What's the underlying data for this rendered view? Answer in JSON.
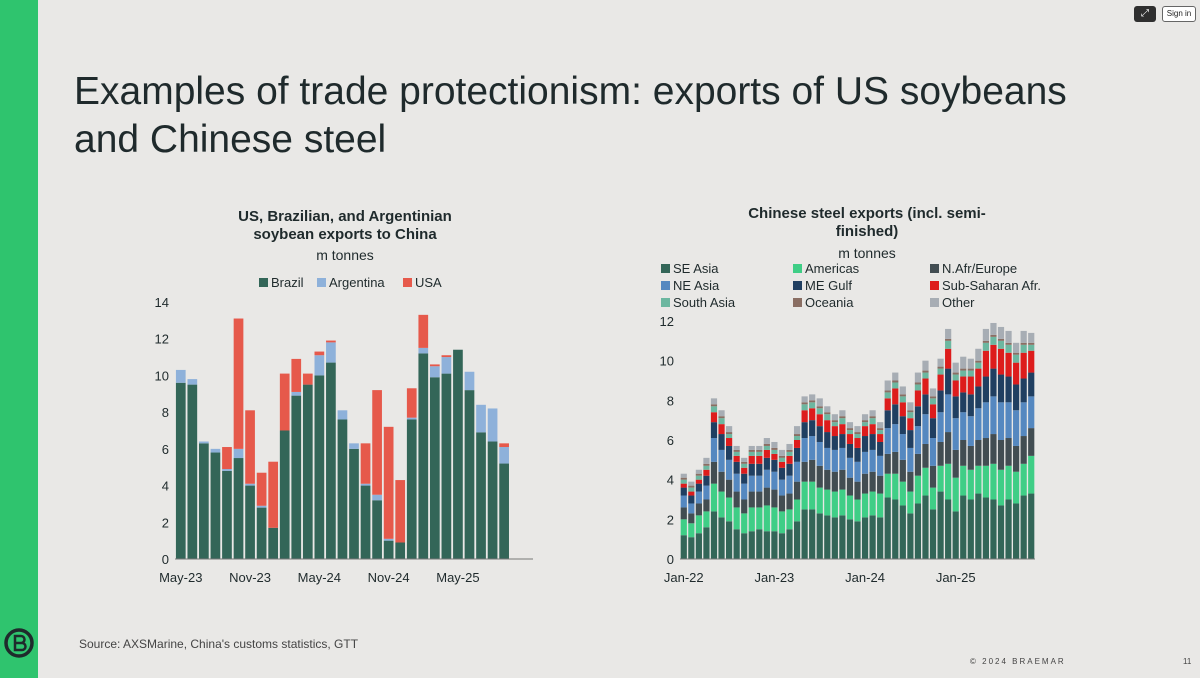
{
  "slide": {
    "title": "Examples of trade protectionism: exports of US soybeans and Chinese steel",
    "source": "Source: AXSMarine, China's customs statistics, GTT",
    "copyright": "© 2024 BRAEMAR",
    "page_number": "11",
    "sign_in_label": "Sign in",
    "expand_icon": "compress-icon",
    "accent_color": "#2fc46e"
  },
  "chart_data": [
    {
      "type": "bar",
      "stacked": true,
      "title": "US, Brazilian, and Argentinian soybean exports to China",
      "subtitle": "m tonnes",
      "xlabel": "",
      "ylabel": "",
      "ylim": [
        0,
        14
      ],
      "yticks": [
        0,
        2,
        4,
        6,
        8,
        10,
        12,
        14
      ],
      "xtick_labels": [
        {
          "index": 0,
          "label": "May-23"
        },
        {
          "index": 6,
          "label": "Nov-23"
        },
        {
          "index": 12,
          "label": "May-24"
        },
        {
          "index": 18,
          "label": "Nov-24"
        },
        {
          "index": 24,
          "label": "May-25"
        }
      ],
      "legend_position": "top",
      "categories": [
        "May-23",
        "Jun-23",
        "Jul-23",
        "Aug-23",
        "Sep-23",
        "Oct-23",
        "Nov-23",
        "Dec-23",
        "Jan-24",
        "Feb-24",
        "Mar-24",
        "Apr-24",
        "May-24",
        "Jun-24",
        "Jul-24",
        "Aug-24",
        "Sep-24",
        "Oct-24",
        "Nov-24",
        "Dec-24",
        "Jan-25",
        "Feb-25",
        "Mar-25",
        "Apr-25",
        "May-25",
        "Jun-25",
        "Jul-25",
        "Aug-25",
        "Sep-25",
        "Oct-25",
        "Nov-25"
      ],
      "series": [
        {
          "name": "Brazil",
          "color": "#336658",
          "values": [
            9.6,
            9.5,
            6.3,
            5.8,
            4.8,
            5.5,
            4.0,
            2.8,
            1.7,
            7.0,
            8.9,
            9.5,
            10.0,
            10.7,
            7.6,
            6.0,
            4.0,
            3.2,
            1.0,
            0.9,
            7.6,
            11.2,
            9.9,
            10.1,
            11.4,
            9.2,
            6.9,
            6.4,
            5.2,
            0,
            0
          ]
        },
        {
          "name": "Argentina",
          "color": "#8eb1da",
          "values": [
            0.7,
            0.3,
            0.1,
            0.2,
            0.1,
            0.5,
            0.1,
            0.1,
            0.0,
            0.0,
            0.2,
            0.0,
            1.1,
            1.1,
            0.5,
            0.3,
            0.1,
            0.3,
            0.1,
            0.0,
            0.1,
            0.3,
            0.6,
            0.9,
            0.0,
            1.0,
            1.5,
            1.8,
            0.9,
            0,
            0
          ]
        },
        {
          "name": "USA",
          "color": "#e6594b",
          "values": [
            0,
            0,
            0,
            0,
            1.2,
            7.1,
            4.0,
            1.8,
            3.6,
            3.1,
            1.8,
            0.6,
            0.2,
            0.1,
            0,
            0,
            2.2,
            5.7,
            6.1,
            3.4,
            1.6,
            1.8,
            0.1,
            0.1,
            0,
            0,
            0,
            0,
            0.2,
            0,
            0
          ]
        }
      ]
    },
    {
      "type": "bar",
      "stacked": true,
      "title": "Chinese steel exports (incl. semi-finished)",
      "subtitle": "m tonnes",
      "xlabel": "",
      "ylabel": "",
      "ylim": [
        0,
        12
      ],
      "yticks": [
        0,
        2,
        4,
        6,
        8,
        10,
        12
      ],
      "xtick_labels": [
        {
          "index": 0,
          "label": "Jan-22"
        },
        {
          "index": 12,
          "label": "Jan-23"
        },
        {
          "index": 24,
          "label": "Jan-24"
        },
        {
          "index": 36,
          "label": "Jan-25"
        }
      ],
      "legend_position": "top",
      "categories": [
        "Jan-22",
        "Feb-22",
        "Mar-22",
        "Apr-22",
        "May-22",
        "Jun-22",
        "Jul-22",
        "Aug-22",
        "Sep-22",
        "Oct-22",
        "Nov-22",
        "Dec-22",
        "Jan-23",
        "Feb-23",
        "Mar-23",
        "Apr-23",
        "May-23",
        "Jun-23",
        "Jul-23",
        "Aug-23",
        "Sep-23",
        "Oct-23",
        "Nov-23",
        "Dec-23",
        "Jan-24",
        "Feb-24",
        "Mar-24",
        "Apr-24",
        "May-24",
        "Jun-24",
        "Jul-24",
        "Aug-24",
        "Sep-24",
        "Oct-24",
        "Nov-24",
        "Dec-24",
        "Jan-25",
        "Feb-25",
        "Mar-25",
        "Apr-25",
        "May-25",
        "Jun-25",
        "Jul-25",
        "Aug-25",
        "Sep-25",
        "Oct-25",
        "Nov-25"
      ],
      "series": [
        {
          "name": "SE Asia",
          "color": "#336658",
          "values": [
            1.2,
            1.1,
            1.3,
            1.6,
            2.4,
            2.1,
            1.9,
            1.5,
            1.3,
            1.4,
            1.5,
            1.4,
            1.4,
            1.3,
            1.5,
            1.9,
            2.5,
            2.5,
            2.3,
            2.2,
            2.1,
            2.2,
            2.0,
            1.9,
            2.1,
            2.2,
            2.1,
            3.1,
            3.0,
            2.7,
            2.3,
            2.8,
            3.2,
            2.5,
            3.4,
            3.0,
            2.4,
            3.2,
            3.0,
            3.3,
            3.1,
            3.0,
            2.7,
            3.0,
            2.8,
            3.2,
            3.3
          ]
        },
        {
          "name": "Americas",
          "color": "#3fce86",
          "values": [
            0.8,
            0.7,
            0.9,
            0.8,
            1.4,
            1.3,
            1.2,
            1.1,
            1.0,
            1.2,
            1.1,
            1.3,
            1.2,
            1.1,
            1.0,
            1.1,
            1.4,
            1.4,
            1.3,
            1.3,
            1.3,
            1.3,
            1.2,
            1.1,
            1.2,
            1.2,
            1.2,
            1.2,
            1.3,
            1.2,
            1.1,
            1.4,
            1.4,
            1.1,
            1.3,
            1.8,
            1.7,
            1.5,
            1.5,
            1.4,
            1.6,
            1.8,
            1.8,
            1.7,
            1.6,
            1.6,
            1.9
          ]
        },
        {
          "name": "N.Afr/Europe",
          "color": "#424d52",
          "values": [
            0.6,
            0.5,
            0.6,
            0.6,
            1.1,
            1.0,
            0.9,
            0.8,
            0.7,
            0.8,
            0.8,
            0.9,
            0.9,
            0.8,
            0.8,
            0.9,
            1.0,
            1.1,
            1.1,
            1.0,
            1.0,
            1.0,
            0.9,
            0.9,
            1.0,
            1.0,
            0.9,
            1.0,
            1.1,
            1.1,
            1.0,
            1.1,
            1.2,
            1.1,
            1.2,
            1.6,
            1.4,
            1.3,
            1.2,
            1.3,
            1.4,
            1.5,
            1.5,
            1.4,
            1.3,
            1.4,
            1.4
          ]
        },
        {
          "name": "NE Asia",
          "color": "#5588c0",
          "values": [
            0.6,
            0.5,
            0.6,
            0.7,
            1.2,
            1.1,
            1.0,
            0.9,
            0.8,
            0.8,
            0.8,
            0.9,
            0.9,
            0.8,
            0.9,
            1.0,
            1.2,
            1.2,
            1.2,
            1.1,
            1.1,
            1.1,
            1.0,
            1.0,
            1.1,
            1.1,
            1.0,
            1.3,
            1.4,
            1.3,
            1.2,
            1.4,
            1.5,
            1.4,
            1.5,
            1.9,
            1.6,
            1.4,
            1.5,
            1.6,
            1.8,
            1.9,
            1.9,
            1.8,
            1.8,
            1.7,
            1.6
          ]
        },
        {
          "name": "ME Gulf",
          "color": "#203f61",
          "values": [
            0.4,
            0.4,
            0.4,
            0.5,
            0.8,
            0.8,
            0.7,
            0.6,
            0.5,
            0.6,
            0.6,
            0.6,
            0.6,
            0.6,
            0.6,
            0.7,
            0.8,
            0.8,
            0.8,
            0.8,
            0.7,
            0.7,
            0.7,
            0.7,
            0.8,
            0.8,
            0.7,
            0.9,
            1.0,
            0.9,
            0.9,
            1.0,
            1.0,
            1.0,
            1.1,
            1.3,
            1.1,
            1.0,
            1.1,
            1.1,
            1.3,
            1.4,
            1.4,
            1.3,
            1.3,
            1.2,
            1.2
          ]
        },
        {
          "name": "Sub-Saharan Afr.",
          "color": "#dd1c1c",
          "values": [
            0.2,
            0.2,
            0.2,
            0.3,
            0.5,
            0.5,
            0.4,
            0.3,
            0.3,
            0.4,
            0.4,
            0.4,
            0.3,
            0.3,
            0.4,
            0.4,
            0.6,
            0.6,
            0.6,
            0.6,
            0.5,
            0.5,
            0.5,
            0.5,
            0.5,
            0.5,
            0.4,
            0.6,
            0.8,
            0.7,
            0.6,
            0.8,
            0.8,
            0.7,
            0.8,
            1.0,
            0.8,
            0.8,
            0.9,
            0.9,
            1.3,
            1.2,
            1.3,
            1.2,
            1.1,
            1.3,
            1.1
          ]
        },
        {
          "name": "South Asia",
          "color": "#6cb7a0",
          "values": [
            0.2,
            0.2,
            0.2,
            0.2,
            0.3,
            0.3,
            0.2,
            0.2,
            0.2,
            0.2,
            0.2,
            0.2,
            0.2,
            0.2,
            0.2,
            0.2,
            0.3,
            0.3,
            0.3,
            0.3,
            0.2,
            0.3,
            0.2,
            0.2,
            0.2,
            0.3,
            0.2,
            0.3,
            0.3,
            0.3,
            0.3,
            0.3,
            0.3,
            0.3,
            0.3,
            0.4,
            0.3,
            0.3,
            0.3,
            0.3,
            0.4,
            0.4,
            0.4,
            0.4,
            0.4,
            0.4,
            0.3
          ]
        },
        {
          "name": "Oceania",
          "color": "#8a6e63",
          "values": [
            0.1,
            0.1,
            0.1,
            0.1,
            0.1,
            0.1,
            0.1,
            0.1,
            0.1,
            0.1,
            0.1,
            0.1,
            0.1,
            0.1,
            0.1,
            0.1,
            0.1,
            0.1,
            0.1,
            0.1,
            0.1,
            0.1,
            0.1,
            0.1,
            0.1,
            0.1,
            0.1,
            0.1,
            0.1,
            0.1,
            0.1,
            0.1,
            0.1,
            0.1,
            0.1,
            0.1,
            0.1,
            0.1,
            0.1,
            0.1,
            0.1,
            0.1,
            0.1,
            0.1,
            0.1,
            0.1,
            0.1
          ]
        },
        {
          "name": "Other",
          "color": "#a7adb4",
          "values": [
            0.2,
            0.2,
            0.2,
            0.3,
            0.3,
            0.3,
            0.3,
            0.2,
            0.2,
            0.2,
            0.2,
            0.3,
            0.3,
            0.3,
            0.3,
            0.4,
            0.3,
            0.3,
            0.4,
            0.3,
            0.3,
            0.3,
            0.3,
            0.3,
            0.3,
            0.3,
            0.3,
            0.5,
            0.4,
            0.4,
            0.4,
            0.5,
            0.5,
            0.4,
            0.4,
            0.5,
            0.5,
            0.6,
            0.5,
            0.6,
            0.6,
            0.6,
            0.6,
            0.6,
            0.5,
            0.6,
            0.5
          ]
        }
      ]
    }
  ]
}
